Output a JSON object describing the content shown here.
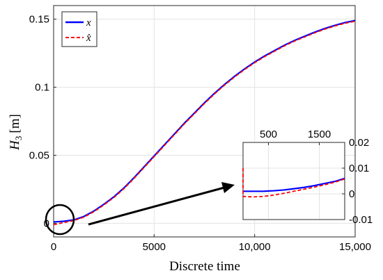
{
  "chart_data": [
    {
      "type": "line",
      "title": "",
      "xlabel": "Discrete time",
      "ylabel_main": "H",
      "ylabel_sub": "3",
      "ylabel_unit": "[m]",
      "xlim": [
        0,
        15000
      ],
      "ylim": [
        -0.01,
        0.16
      ],
      "xticks": [
        0,
        5000,
        10000,
        15000
      ],
      "xtick_labels": [
        "0",
        "5000",
        "10,000",
        "15,000"
      ],
      "yticks": [
        0,
        0.05,
        0.1,
        0.15
      ],
      "ytick_labels": [
        "0",
        "0.05",
        "0.1",
        "0.15"
      ],
      "grid": true,
      "legend": "top-left",
      "series": [
        {
          "name": "x",
          "color": "#0000ff",
          "style": "solid",
          "x": [
            0,
            500,
            1000,
            1500,
            2000,
            2500,
            3000,
            3500,
            4000,
            4500,
            5000,
            5500,
            6000,
            6500,
            7000,
            7500,
            8000,
            8500,
            9000,
            9500,
            10000,
            10500,
            11000,
            11500,
            12000,
            12500,
            13000,
            13500,
            14000,
            14500,
            15000
          ],
          "y": [
            0.001,
            0.0015,
            0.0025,
            0.005,
            0.009,
            0.014,
            0.0195,
            0.026,
            0.0335,
            0.0415,
            0.0495,
            0.0575,
            0.0655,
            0.0735,
            0.081,
            0.0885,
            0.0955,
            0.102,
            0.108,
            0.1135,
            0.1185,
            0.123,
            0.127,
            0.131,
            0.1345,
            0.1375,
            0.1405,
            0.1432,
            0.1455,
            0.1475,
            0.149
          ]
        },
        {
          "name": "x̂",
          "color": "#ff0000",
          "style": "dashed",
          "x": [
            0,
            500,
            1000,
            1500,
            2000,
            2500,
            3000,
            3500,
            4000,
            4500,
            5000,
            5500,
            6000,
            6500,
            7000,
            7500,
            8000,
            8500,
            9000,
            9500,
            10000,
            10500,
            11000,
            11500,
            12000,
            12500,
            13000,
            13500,
            14000,
            14500,
            15000
          ],
          "y": [
            -0.001,
            0.0005,
            0.002,
            0.0045,
            0.0085,
            0.0135,
            0.019,
            0.0255,
            0.033,
            0.041,
            0.049,
            0.057,
            0.065,
            0.073,
            0.0805,
            0.088,
            0.095,
            0.1015,
            0.1075,
            0.113,
            0.118,
            0.1225,
            0.1265,
            0.1305,
            0.134,
            0.137,
            0.14,
            0.1427,
            0.145,
            0.147,
            0.1485
          ]
        }
      ]
    },
    {
      "type": "line",
      "title": "",
      "xlim": [
        0,
        2000
      ],
      "ylim": [
        -0.01,
        0.02
      ],
      "xticks": [
        500,
        1500
      ],
      "xtick_labels": [
        "500",
        "1500"
      ],
      "yticks": [
        -0.01,
        0,
        0.01,
        0.02
      ],
      "ytick_labels": [
        "-0.01",
        "0",
        "0.01",
        "0.02"
      ],
      "xaxis": "top",
      "yaxis": "right",
      "grid": true,
      "series": [
        {
          "name": "x",
          "color": "#0000ff",
          "style": "solid",
          "x": [
            0,
            200,
            400,
            600,
            800,
            1000,
            1200,
            1400,
            1600,
            1800,
            2000
          ],
          "y": [
            0.001,
            0.001,
            0.001,
            0.0012,
            0.0015,
            0.002,
            0.0025,
            0.0032,
            0.004,
            0.0048,
            0.006
          ]
        },
        {
          "name": "x̂",
          "color": "#ff0000",
          "style": "dashed",
          "x": [
            0,
            0,
            200,
            400,
            600,
            800,
            1000,
            1200,
            1400,
            1600,
            1800,
            2000
          ],
          "y": [
            0.01,
            -0.001,
            -0.0012,
            -0.001,
            -0.0005,
            0.0002,
            0.001,
            0.0018,
            0.0026,
            0.0035,
            0.0045,
            0.0058
          ]
        }
      ]
    }
  ]
}
